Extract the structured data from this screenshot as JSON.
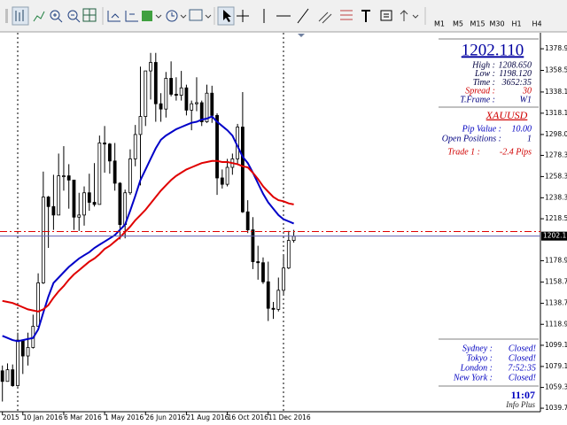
{
  "toolbar": {
    "timeframes": [
      "M1",
      "M5",
      "M15",
      "M30",
      "H1",
      "H4"
    ]
  },
  "chart_data": {
    "type": "candlestick",
    "categories": [
      "2015",
      null,
      null,
      null,
      "10 Jan 2016",
      null,
      null,
      null,
      null,
      null,
      null,
      null,
      "6 Mar 2016",
      null,
      null,
      null,
      null,
      null,
      null,
      null,
      "1 May 2016",
      null,
      null,
      null,
      null,
      null,
      null,
      null,
      "26 Jun 2016",
      null,
      null,
      null,
      null,
      null,
      null,
      null,
      "21 Aug 2016",
      null,
      null,
      null,
      null,
      null,
      null,
      null,
      "16 Oct 2016",
      null,
      null,
      null,
      null,
      null,
      null,
      null,
      "11 Dec 2016",
      null,
      null,
      null,
      null,
      null
    ],
    "open": [
      1075,
      1065,
      1076,
      1061,
      1104,
      1089,
      1097,
      1117,
      1158,
      1239,
      1230,
      1222,
      1259,
      1259,
      1255,
      1220,
      1222,
      1243,
      1234,
      1232,
      1290,
      1289,
      1273,
      1252,
      1213,
      1243,
      1275,
      1298,
      1315,
      1358,
      1366,
      1327,
      1322,
      1351,
      1336,
      1335,
      1342,
      1321,
      1327,
      1328,
      1310,
      1337,
      1316,
      1257,
      1251,
      1267,
      1275,
      1305,
      1225,
      1208,
      1178,
      1177,
      1159,
      1134,
      1133,
      1151,
      1172,
      1198
    ],
    "high": [
      1080,
      1082,
      1081,
      1111,
      1104,
      1111,
      1128,
      1167,
      1263,
      1240,
      1260,
      1280,
      1287,
      1270,
      1255,
      1243,
      1249,
      1261,
      1271,
      1297,
      1306,
      1290,
      1290,
      1253,
      1246,
      1284,
      1307,
      1362,
      1358,
      1375,
      1375,
      1337,
      1357,
      1367,
      1352,
      1358,
      1345,
      1330,
      1352,
      1330,
      1345,
      1344,
      1318,
      1265,
      1275,
      1280,
      1308,
      1338,
      1236,
      1220,
      1193,
      1182,
      1178,
      1140,
      1163,
      1184,
      1207,
      1208
    ],
    "low": [
      1046,
      1065,
      1060,
      1060,
      1072,
      1080,
      1096,
      1117,
      1157,
      1191,
      1208,
      1225,
      1245,
      1228,
      1208,
      1207,
      1212,
      1226,
      1230,
      1232,
      1262,
      1261,
      1245,
      1199,
      1200,
      1241,
      1268,
      1250,
      1306,
      1331,
      1310,
      1310,
      1314,
      1334,
      1330,
      1330,
      1316,
      1302,
      1320,
      1306,
      1309,
      1309,
      1241,
      1247,
      1249,
      1260,
      1270,
      1224,
      1205,
      1171,
      1161,
      1157,
      1122,
      1124,
      1131,
      1146,
      1171,
      1196
    ],
    "close": [
      1065,
      1076,
      1061,
      1104,
      1089,
      1097,
      1117,
      1158,
      1239,
      1230,
      1222,
      1259,
      1259,
      1255,
      1220,
      1222,
      1243,
      1234,
      1232,
      1290,
      1289,
      1273,
      1252,
      1213,
      1243,
      1275,
      1298,
      1315,
      1358,
      1366,
      1327,
      1322,
      1351,
      1336,
      1335,
      1342,
      1321,
      1327,
      1328,
      1310,
      1337,
      1316,
      1257,
      1251,
      1267,
      1275,
      1305,
      1225,
      1208,
      1178,
      1177,
      1159,
      1134,
      1133,
      1151,
      1172,
      1198,
      1202
    ],
    "up_color": "#ffffff",
    "down_color": "#000000",
    "series": [
      {
        "color": "#0000c8",
        "values": [
          1108,
          1106,
          1104,
          1103,
          1104,
          1105,
          1106,
          1114,
          1130,
          1145,
          1158,
          1163,
          1168,
          1173,
          1177,
          1181,
          1184,
          1187,
          1191,
          1194,
          1197,
          1200,
          1203,
          1208,
          1213,
          1226,
          1240,
          1255,
          1265,
          1275,
          1285,
          1293,
          1297,
          1300,
          1303,
          1305,
          1307,
          1309,
          1310,
          1312,
          1313,
          1315,
          1310,
          1306,
          1302,
          1297,
          1287,
          1277,
          1271,
          1262,
          1252,
          1242,
          1234,
          1228,
          1222,
          1218,
          1216,
          1214
        ]
      },
      {
        "color": "#e00000",
        "values": [
          1141,
          1140,
          1139,
          1137,
          1135,
          1133,
          1132,
          1131,
          1133,
          1137,
          1144,
          1150,
          1155,
          1161,
          1166,
          1170,
          1174,
          1178,
          1181,
          1185,
          1190,
          1193,
          1197,
          1201,
          1206,
          1211,
          1217,
          1222,
          1227,
          1233,
          1239,
          1245,
          1250,
          1255,
          1259,
          1262,
          1265,
          1267,
          1269,
          1271,
          1272,
          1273,
          1273,
          1272,
          1272,
          1271,
          1270,
          1268,
          1267,
          1262,
          1256,
          1249,
          1244,
          1239,
          1236,
          1235,
          1233,
          1232
        ]
      }
    ],
    "price_lines": [
      {
        "value": 1206.4,
        "color": "#e00000"
      },
      {
        "value": 1202.11,
        "label": "1202.11",
        "color": "#6060b0"
      }
    ],
    "ylim": [
      1036.4,
      1394.0
    ],
    "yticks": [
      {
        "value": 1378.9,
        "label": "1378.90"
      },
      {
        "value": 1358.5,
        "label": "1358.50"
      },
      {
        "value": 1338.1,
        "label": "1338.10"
      },
      {
        "value": 1318.1,
        "label": "1318.10"
      },
      {
        "value": 1298.0,
        "label": "1298.00"
      },
      {
        "value": 1278.3,
        "label": "1278.30"
      },
      {
        "value": 1258.3,
        "label": "1258.30"
      },
      {
        "value": 1238.3,
        "label": "1238.30"
      },
      {
        "value": 1218.5,
        "label": "1218.50"
      },
      {
        "value": 1178.9,
        "label": "1178.90"
      },
      {
        "value": 1158.7,
        "label": "1158.70"
      },
      {
        "value": 1138.7,
        "label": "1138.70"
      },
      {
        "value": 1118.9,
        "label": "1118.90"
      },
      {
        "value": 1099.1,
        "label": "1099.10"
      },
      {
        "value": 1079.1,
        "label": "1079.10"
      },
      {
        "value": 1059.3,
        "label": "1059.30"
      },
      {
        "value": 1039.7,
        "label": "1039.70"
      }
    ],
    "grid": false
  },
  "info_panel": {
    "price": "1202.110",
    "stats": [
      [
        "High :",
        "1208.650"
      ],
      [
        "Low :",
        "1198.120"
      ],
      [
        "Time :",
        "3652:35"
      ],
      [
        "Spread :",
        "30"
      ],
      [
        "T.Frame :",
        "W1"
      ]
    ],
    "symbol": "XAUUSD",
    "account": [
      [
        "Pip Value :",
        "10.00"
      ],
      [
        "Open Positions :",
        "1"
      ],
      [
        "Trade 1 :",
        "-2.4 Pips"
      ]
    ],
    "sessions": [
      [
        "Sydney :",
        "Closed!"
      ],
      [
        "Tokyo :",
        "Closed!"
      ],
      [
        "London :",
        "7:52:35"
      ],
      [
        "New York :",
        "Closed!"
      ]
    ],
    "clock": "11:07",
    "brand": "Info Plus"
  }
}
